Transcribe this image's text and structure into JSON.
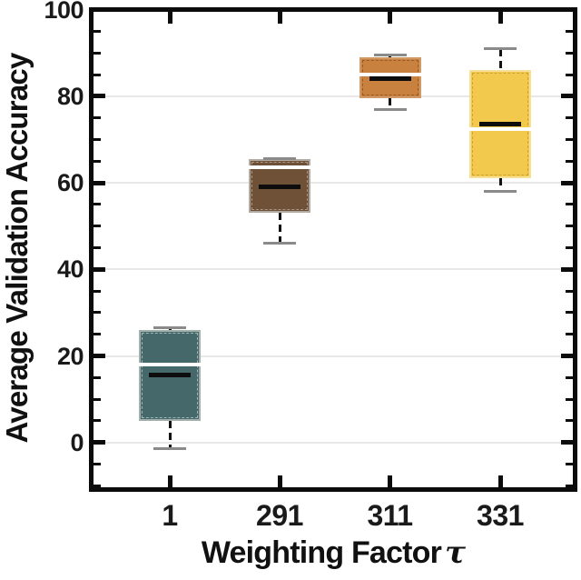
{
  "chart_data": {
    "type": "box",
    "title": "",
    "xlabel": {
      "text": "Weighting Factor",
      "symbol": "τ"
    },
    "ylabel": "Average Validation Accuracy",
    "categories": [
      "1",
      "291",
      "311",
      "331"
    ],
    "ylim": [
      -10.5,
      100
    ],
    "ytick_labels": [
      "0",
      "20",
      "40",
      "60",
      "80",
      "100"
    ],
    "yticks_major": [
      0,
      20,
      40,
      60,
      80,
      100
    ],
    "minor_tick_step": 5,
    "grid_values": [
      0,
      20,
      40,
      60,
      80
    ],
    "grid_on": true,
    "legend": "none",
    "frame": true,
    "series": [
      {
        "category": "1",
        "whisker_low": -1.5,
        "q1": 5,
        "median": 18,
        "mean": 15.5,
        "q3": 26,
        "whisker_high": 26.5,
        "fill": "#45696a",
        "edge": "#a3b1ad",
        "inner_dash": "rgba(255,255,255,0.5)"
      },
      {
        "category": "291",
        "whisker_low": 46,
        "q1": 53,
        "median": 63.5,
        "mean": 59,
        "q3": 65.5,
        "whisker_high": 65.5,
        "fill": "#6e5136",
        "edge": "#b3aaa2",
        "inner_dash": "rgba(255,255,255,0.4)"
      },
      {
        "category": "311",
        "whisker_low": 77,
        "q1": 79.5,
        "median": 85,
        "mean": 84,
        "q3": 89,
        "whisker_high": 89.5,
        "fill": "#c8813f",
        "edge": "#cf9a67",
        "inner_dash": "rgba(120,60,10,0.55)"
      },
      {
        "category": "331",
        "whisker_low": 58,
        "q1": 61,
        "median": 72.5,
        "mean": 73.5,
        "q3": 86,
        "whisker_high": 91,
        "fill": "#f2c94c",
        "edge": "#f6e098",
        "inner_dash": "rgba(180,140,40,0.6)"
      }
    ],
    "colors": {
      "frame": "#0b0b0b",
      "grid": "#e8e8e8",
      "whisker": "#111111",
      "whisker_cap": "#8a8a8a",
      "median": "#ffffff",
      "mean": "#0d0d0d",
      "text": "#111111",
      "background": "#ffffff"
    }
  }
}
